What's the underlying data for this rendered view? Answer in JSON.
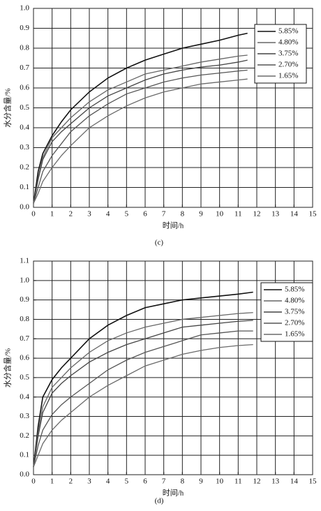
{
  "chart_data": [
    {
      "type": "line",
      "caption": "(c)",
      "xlabel": "时间/h",
      "ylabel": "水分含量/%",
      "x": [
        0,
        0.25,
        0.5,
        1,
        1.5,
        2,
        3,
        4,
        5,
        6,
        7,
        8,
        9,
        10,
        11,
        11.5
      ],
      "xlim": [
        0,
        15
      ],
      "xticks": [
        0,
        1,
        2,
        3,
        4,
        5,
        6,
        7,
        8,
        9,
        10,
        11,
        12,
        13,
        14,
        15
      ],
      "ylim": [
        0,
        1
      ],
      "yticks": [
        {
          "value": 0,
          "label": "0.0"
        },
        0.1,
        0.2,
        0.3,
        0.4,
        0.5,
        0.6,
        0.7,
        0.8,
        0.9,
        {
          "value": 1,
          "label": "1.0"
        }
      ],
      "grid": true,
      "legend": "upper right",
      "series": [
        {
          "name": "5.85%",
          "color": "#111111",
          "values": [
            0.02,
            0.18,
            0.27,
            0.36,
            0.43,
            0.49,
            0.58,
            0.65,
            0.7,
            0.74,
            0.77,
            0.8,
            0.82,
            0.84,
            0.865,
            0.875
          ]
        },
        {
          "name": "4.80%",
          "color": "#666666",
          "values": [
            0.02,
            0.15,
            0.25,
            0.35,
            0.4,
            0.45,
            0.53,
            0.59,
            0.63,
            0.67,
            0.69,
            0.71,
            0.73,
            0.745,
            0.76,
            0.765
          ]
        },
        {
          "name": "3.75%",
          "color": "#444444",
          "values": [
            0.02,
            0.14,
            0.24,
            0.33,
            0.38,
            0.42,
            0.5,
            0.56,
            0.6,
            0.64,
            0.67,
            0.69,
            0.705,
            0.715,
            0.73,
            0.74
          ]
        },
        {
          "name": "2.70%",
          "color": "#555555",
          "values": [
            0.02,
            0.1,
            0.18,
            0.26,
            0.32,
            0.38,
            0.46,
            0.52,
            0.57,
            0.6,
            0.63,
            0.65,
            0.665,
            0.675,
            0.685,
            0.69
          ]
        },
        {
          "name": "1.65%",
          "color": "#6a6a6a",
          "values": [
            0.02,
            0.07,
            0.13,
            0.2,
            0.26,
            0.31,
            0.4,
            0.46,
            0.51,
            0.55,
            0.58,
            0.6,
            0.62,
            0.63,
            0.64,
            0.645
          ]
        }
      ]
    },
    {
      "type": "line",
      "caption": "(d)",
      "xlabel": "时间/h",
      "ylabel": "水分含量/%",
      "x": [
        0,
        0.25,
        0.5,
        1,
        1.5,
        2,
        3,
        4,
        5,
        6,
        7,
        8,
        9,
        10,
        11,
        11.8
      ],
      "xlim": [
        0,
        15
      ],
      "xticks": [
        0,
        1,
        2,
        3,
        4,
        5,
        6,
        7,
        8,
        9,
        10,
        11,
        12,
        13,
        14,
        15
      ],
      "ylim": [
        0,
        1.1
      ],
      "yticks": [
        {
          "value": 0,
          "label": "0.0"
        },
        0.1,
        0.2,
        0.3,
        0.4,
        0.5,
        0.6,
        0.7,
        0.8,
        0.9,
        {
          "value": 1,
          "label": "1.0"
        },
        1.1
      ],
      "grid": true,
      "legend": "upper right",
      "series": [
        {
          "name": "5.85%",
          "color": "#111111",
          "values": [
            0.04,
            0.25,
            0.4,
            0.49,
            0.55,
            0.6,
            0.7,
            0.77,
            0.82,
            0.86,
            0.88,
            0.9,
            0.91,
            0.92,
            0.93,
            0.94
          ]
        },
        {
          "name": "4.80%",
          "color": "#666666",
          "values": [
            0.04,
            0.22,
            0.35,
            0.45,
            0.5,
            0.55,
            0.63,
            0.69,
            0.73,
            0.76,
            0.78,
            0.8,
            0.81,
            0.82,
            0.83,
            0.835
          ]
        },
        {
          "name": "3.75%",
          "color": "#444444",
          "values": [
            0.04,
            0.2,
            0.32,
            0.42,
            0.47,
            0.51,
            0.58,
            0.63,
            0.67,
            0.7,
            0.73,
            0.76,
            0.77,
            0.78,
            0.79,
            0.795
          ]
        },
        {
          "name": "2.70%",
          "color": "#555555",
          "values": [
            0.04,
            0.15,
            0.23,
            0.31,
            0.36,
            0.4,
            0.47,
            0.54,
            0.59,
            0.63,
            0.66,
            0.69,
            0.72,
            0.73,
            0.74,
            0.74
          ]
        },
        {
          "name": "1.65%",
          "color": "#6a6a6a",
          "values": [
            0.04,
            0.1,
            0.16,
            0.23,
            0.28,
            0.32,
            0.4,
            0.46,
            0.51,
            0.56,
            0.59,
            0.62,
            0.64,
            0.655,
            0.665,
            0.67
          ]
        }
      ]
    }
  ]
}
